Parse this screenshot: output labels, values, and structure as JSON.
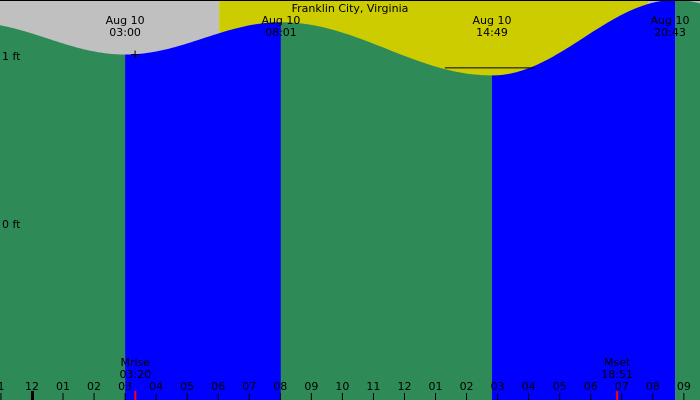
{
  "chart_data": {
    "type": "area",
    "title": "Franklin City, Virginia",
    "xlabel": "",
    "ylabel": "",
    "units": "ft",
    "x_units": "hour",
    "xlim": [
      -1.03,
      21.52
    ],
    "ylim": [
      -4.94,
      1.0
    ],
    "y_tick_labels": [
      {
        "value": 1,
        "label": "1 ft"
      },
      {
        "value": 0,
        "label": "0 ft"
      }
    ],
    "x_tick_labels": [
      {
        "hour": -1,
        "label": "1"
      },
      {
        "hour": 0,
        "label": "12"
      },
      {
        "hour": 1,
        "label": "01"
      },
      {
        "hour": 2,
        "label": "02"
      },
      {
        "hour": 3,
        "label": "03"
      },
      {
        "hour": 4,
        "label": "04"
      },
      {
        "hour": 5,
        "label": "05"
      },
      {
        "hour": 6,
        "label": "06"
      },
      {
        "hour": 7,
        "label": "07"
      },
      {
        "hour": 8,
        "label": "08"
      },
      {
        "hour": 9,
        "label": "09"
      },
      {
        "hour": 10,
        "label": "10"
      },
      {
        "hour": 11,
        "label": "11"
      },
      {
        "hour": 12,
        "label": "12"
      },
      {
        "hour": 13,
        "label": "01"
      },
      {
        "hour": 14,
        "label": "02"
      },
      {
        "hour": 15,
        "label": "03"
      },
      {
        "hour": 16,
        "label": "04"
      },
      {
        "hour": 17,
        "label": "05"
      },
      {
        "hour": 18,
        "label": "06"
      },
      {
        "hour": 19,
        "label": "07"
      },
      {
        "hour": 20,
        "label": "08"
      },
      {
        "hour": 21,
        "label": "09"
      }
    ],
    "events": [
      {
        "date": "Aug 10",
        "time": "03:00",
        "hour": 3.0,
        "height": 0.19,
        "type": "low"
      },
      {
        "date": "Aug 10",
        "time": "08:01",
        "hour": 8.02,
        "height": 0.67,
        "type": "high"
      },
      {
        "date": "Aug 10",
        "time": "14:49",
        "hour": 14.82,
        "height": -0.12,
        "type": "low"
      },
      {
        "date": "Aug 10",
        "time": "20:43",
        "hour": 20.72,
        "height": 1.0,
        "type": "high"
      }
    ],
    "tide_level_at_start": 0.67,
    "tide_level_at_end": 0.97,
    "daylight": {
      "start_hour": 6.03,
      "end_hour": 19.85
    },
    "rising_bands": [
      {
        "start_hour": 3.0,
        "end_hour": 8.02
      },
      {
        "start_hour": 14.82,
        "end_hour": 20.72
      }
    ],
    "reference_lines": [
      {
        "value": 1.0,
        "from_hour": -1.03,
        "to_hour": 21.52
      },
      {
        "value": 0.0,
        "from_hour": 13.3,
        "to_hour": 16.2
      }
    ],
    "moon_events": [
      {
        "label": "Mrise",
        "time": "03:20",
        "hour": 3.33
      },
      {
        "label": "Mset",
        "time": "18:51",
        "hour": 18.85
      }
    ],
    "day_boundary_hour": 0,
    "colors": {
      "night": "#c0c0c0",
      "day": "#cccc00",
      "falling_tide": "#2e8b57",
      "rising_tide": "#0000ff",
      "line": "#000000",
      "moon_tick": "#ff0000"
    }
  }
}
